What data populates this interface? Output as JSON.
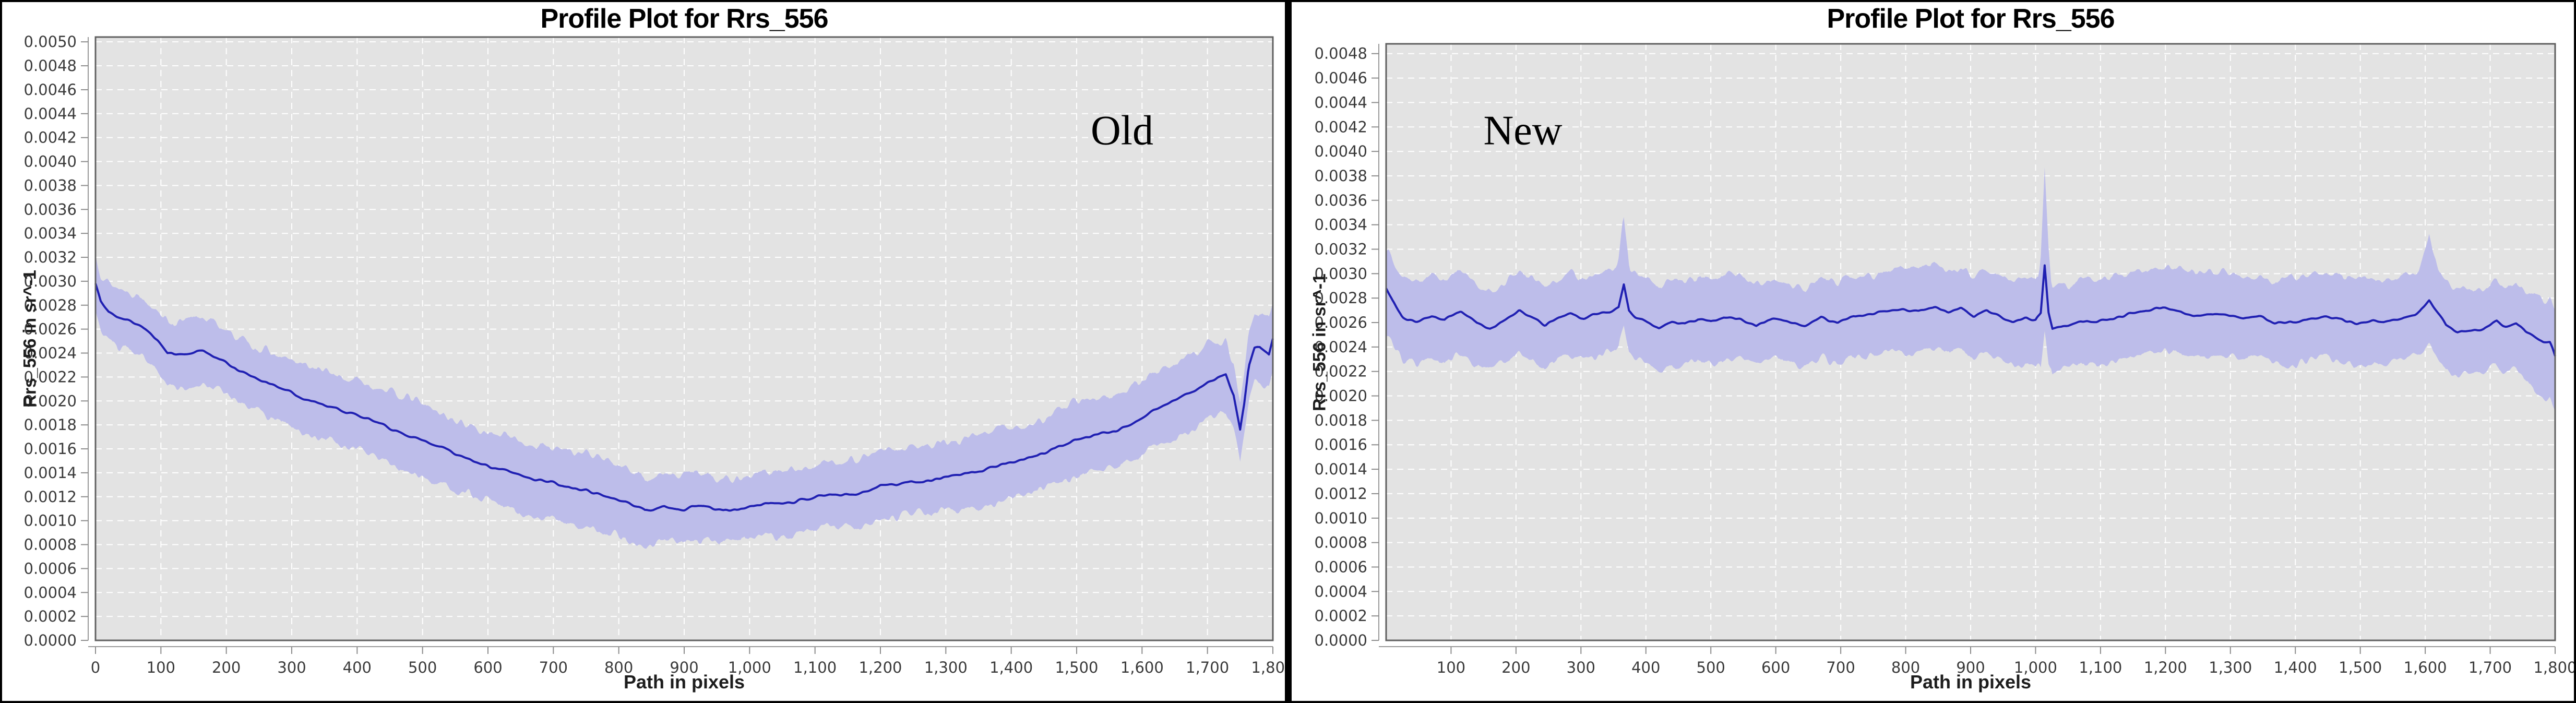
{
  "page": {
    "background": "#ffffff",
    "frame_border_color": "#000000",
    "divider_color": "#000000"
  },
  "chart_data": [
    {
      "type": "line",
      "title": "Profile Plot for Rrs_556",
      "annotation": "Old",
      "xlabel": "Path in pixels",
      "ylabel": "Rrs_556 in sr^-1",
      "xlim": [
        0,
        1800
      ],
      "ylim": [
        0,
        0.00504
      ],
      "x_tick_start": 0,
      "x_tick_step": 100,
      "x_tick_end": 1800,
      "y_tick_start": 0,
      "y_tick_step": 0.0002,
      "y_tick_end": 0.005,
      "grid": true,
      "colors": {
        "line": "#2020b2",
        "band": "#bdbdea",
        "plot_bg": "#e3e3e3",
        "grid": "#ffffff",
        "plot_border": "#5f5f5f",
        "axis": "#9a9a9a",
        "tick_text": "#3a3a3a"
      },
      "line_points": [
        [
          0,
          0.003
        ],
        [
          8,
          0.00285
        ],
        [
          20,
          0.00276
        ],
        [
          45,
          0.00268
        ],
        [
          70,
          0.00262
        ],
        [
          95,
          0.00252
        ],
        [
          110,
          0.00242
        ],
        [
          135,
          0.0024
        ],
        [
          165,
          0.00241
        ],
        [
          185,
          0.00235
        ],
        [
          210,
          0.00228
        ],
        [
          240,
          0.0022
        ],
        [
          270,
          0.00214
        ],
        [
          300,
          0.00206
        ],
        [
          330,
          0.00199
        ],
        [
          360,
          0.00194
        ],
        [
          390,
          0.00188
        ],
        [
          420,
          0.00182
        ],
        [
          450,
          0.00177
        ],
        [
          480,
          0.00171
        ],
        [
          510,
          0.00165
        ],
        [
          540,
          0.00159
        ],
        [
          570,
          0.00153
        ],
        [
          600,
          0.00148
        ],
        [
          630,
          0.00144
        ],
        [
          660,
          0.00139
        ],
        [
          690,
          0.00135
        ],
        [
          720,
          0.00131
        ],
        [
          750,
          0.00127
        ],
        [
          780,
          0.0012
        ],
        [
          810,
          0.00116
        ],
        [
          840,
          0.0011
        ],
        [
          870,
          0.00113
        ],
        [
          900,
          0.00111
        ],
        [
          930,
          0.00113
        ],
        [
          960,
          0.0011
        ],
        [
          990,
          0.00112
        ],
        [
          1020,
          0.00115
        ],
        [
          1050,
          0.00117
        ],
        [
          1080,
          0.00119
        ],
        [
          1110,
          0.00122
        ],
        [
          1140,
          0.00123
        ],
        [
          1170,
          0.00125
        ],
        [
          1200,
          0.00129
        ],
        [
          1230,
          0.00131
        ],
        [
          1260,
          0.00133
        ],
        [
          1290,
          0.00136
        ],
        [
          1320,
          0.0014
        ],
        [
          1350,
          0.00143
        ],
        [
          1380,
          0.00147
        ],
        [
          1410,
          0.00152
        ],
        [
          1440,
          0.00157
        ],
        [
          1470,
          0.00162
        ],
        [
          1500,
          0.00167
        ],
        [
          1530,
          0.00173
        ],
        [
          1560,
          0.00178
        ],
        [
          1590,
          0.00185
        ],
        [
          1620,
          0.00192
        ],
        [
          1650,
          0.00199
        ],
        [
          1680,
          0.00207
        ],
        [
          1700,
          0.00214
        ],
        [
          1715,
          0.00219
        ],
        [
          1728,
          0.00221
        ],
        [
          1740,
          0.00205
        ],
        [
          1750,
          0.00175
        ],
        [
          1756,
          0.00196
        ],
        [
          1763,
          0.00228
        ],
        [
          1772,
          0.00242
        ],
        [
          1780,
          0.00243
        ],
        [
          1788,
          0.0024
        ],
        [
          1794,
          0.00238
        ],
        [
          1800,
          0.00253
        ]
      ],
      "band_upper_halfwidth": [
        [
          0,
          0.00024
        ],
        [
          100,
          0.00027
        ],
        [
          300,
          0.00028
        ],
        [
          600,
          0.0003
        ],
        [
          900,
          0.00028
        ],
        [
          1200,
          0.00028
        ],
        [
          1500,
          0.0003
        ],
        [
          1700,
          0.0003
        ],
        [
          1750,
          0.00026
        ],
        [
          1790,
          0.0003
        ],
        [
          1800,
          0.00032
        ]
      ],
      "band_lower_halfwidth": [
        [
          0,
          0.00024
        ],
        [
          100,
          0.00027
        ],
        [
          300,
          0.00028
        ],
        [
          600,
          0.0003
        ],
        [
          900,
          0.00028
        ],
        [
          1200,
          0.00028
        ],
        [
          1500,
          0.0003
        ],
        [
          1700,
          0.0003
        ],
        [
          1750,
          0.00026
        ],
        [
          1800,
          0.00028
        ]
      ],
      "noise": {
        "seed": 11,
        "line_amp": 2.2e-05,
        "wander_amp": 4.5e-05,
        "band_amp": 6e-05,
        "step": 2
      }
    },
    {
      "type": "line",
      "title": "Profile Plot for Rrs_556",
      "annotation": "New",
      "xlabel": "Path in pixels",
      "ylabel": "Rrs_556 in sr^-1",
      "xlim": [
        0,
        1800
      ],
      "ylim": [
        0,
        0.00488
      ],
      "x_tick_start": 100,
      "x_tick_step": 100,
      "x_tick_end": 1800,
      "y_tick_start": 0,
      "y_tick_step": 0.0002,
      "y_tick_end": 0.0048,
      "grid": true,
      "colors": {
        "line": "#2020b2",
        "band": "#bdbdea",
        "plot_bg": "#e3e3e3",
        "grid": "#ffffff",
        "plot_border": "#5f5f5f",
        "axis": "#9a9a9a",
        "tick_text": "#3a3a3a"
      },
      "line_points": [
        [
          0,
          0.00288
        ],
        [
          10,
          0.00278
        ],
        [
          25,
          0.00265
        ],
        [
          45,
          0.00262
        ],
        [
          70,
          0.00264
        ],
        [
          90,
          0.0026
        ],
        [
          115,
          0.00267
        ],
        [
          140,
          0.00259
        ],
        [
          160,
          0.00256
        ],
        [
          185,
          0.00262
        ],
        [
          205,
          0.0027
        ],
        [
          225,
          0.00264
        ],
        [
          245,
          0.00259
        ],
        [
          265,
          0.00266
        ],
        [
          285,
          0.00268
        ],
        [
          305,
          0.00262
        ],
        [
          325,
          0.00266
        ],
        [
          345,
          0.00268
        ],
        [
          358,
          0.00272
        ],
        [
          366,
          0.00291
        ],
        [
          374,
          0.0027
        ],
        [
          385,
          0.00265
        ],
        [
          400,
          0.00262
        ],
        [
          420,
          0.00256
        ],
        [
          440,
          0.0026
        ],
        [
          460,
          0.00258
        ],
        [
          480,
          0.00262
        ],
        [
          500,
          0.0026
        ],
        [
          520,
          0.00264
        ],
        [
          545,
          0.00262
        ],
        [
          570,
          0.00258
        ],
        [
          595,
          0.00264
        ],
        [
          620,
          0.0026
        ],
        [
          645,
          0.00256
        ],
        [
          670,
          0.00262
        ],
        [
          695,
          0.00258
        ],
        [
          720,
          0.00264
        ],
        [
          745,
          0.00266
        ],
        [
          770,
          0.00268
        ],
        [
          795,
          0.0027
        ],
        [
          820,
          0.00268
        ],
        [
          845,
          0.00272
        ],
        [
          865,
          0.00269
        ],
        [
          885,
          0.00274
        ],
        [
          905,
          0.00265
        ],
        [
          925,
          0.00271
        ],
        [
          945,
          0.00266
        ],
        [
          965,
          0.00262
        ],
        [
          985,
          0.00265
        ],
        [
          1000,
          0.00264
        ],
        [
          1008,
          0.0027
        ],
        [
          1014,
          0.00308
        ],
        [
          1020,
          0.0027
        ],
        [
          1026,
          0.00256
        ],
        [
          1045,
          0.00259
        ],
        [
          1070,
          0.00262
        ],
        [
          1095,
          0.00261
        ],
        [
          1120,
          0.00264
        ],
        [
          1145,
          0.00268
        ],
        [
          1170,
          0.00271
        ],
        [
          1195,
          0.00272
        ],
        [
          1220,
          0.00268
        ],
        [
          1245,
          0.00265
        ],
        [
          1270,
          0.00267
        ],
        [
          1295,
          0.00265
        ],
        [
          1320,
          0.00263
        ],
        [
          1345,
          0.00265
        ],
        [
          1370,
          0.00261
        ],
        [
          1395,
          0.0026
        ],
        [
          1420,
          0.00262
        ],
        [
          1445,
          0.00263
        ],
        [
          1470,
          0.00261
        ],
        [
          1495,
          0.00258
        ],
        [
          1520,
          0.00261
        ],
        [
          1545,
          0.00262
        ],
        [
          1570,
          0.00265
        ],
        [
          1592,
          0.0027
        ],
        [
          1606,
          0.00277
        ],
        [
          1616,
          0.0027
        ],
        [
          1632,
          0.00258
        ],
        [
          1650,
          0.00253
        ],
        [
          1670,
          0.00255
        ],
        [
          1690,
          0.00257
        ],
        [
          1710,
          0.00262
        ],
        [
          1725,
          0.00257
        ],
        [
          1740,
          0.00259
        ],
        [
          1755,
          0.00251
        ],
        [
          1770,
          0.00247
        ],
        [
          1782,
          0.00243
        ],
        [
          1792,
          0.00241
        ],
        [
          1800,
          0.00231
        ]
      ],
      "band_upper_halfwidth": [
        [
          0,
          0.00032
        ],
        [
          300,
          0.00033
        ],
        [
          355,
          0.00035
        ],
        [
          365,
          0.00062
        ],
        [
          375,
          0.00035
        ],
        [
          600,
          0.00032
        ],
        [
          950,
          0.00033
        ],
        [
          1005,
          0.00035
        ],
        [
          1014,
          0.00082
        ],
        [
          1024,
          0.00035
        ],
        [
          1300,
          0.00034
        ],
        [
          1590,
          0.00035
        ],
        [
          1606,
          0.00055
        ],
        [
          1620,
          0.00035
        ],
        [
          1700,
          0.00033
        ],
        [
          1800,
          0.00034
        ]
      ],
      "band_lower_halfwidth": [
        [
          0,
          0.00034
        ],
        [
          300,
          0.00034
        ],
        [
          600,
          0.00033
        ],
        [
          900,
          0.00035
        ],
        [
          1005,
          0.00036
        ],
        [
          1014,
          0.00052
        ],
        [
          1024,
          0.00036
        ],
        [
          1300,
          0.00034
        ],
        [
          1600,
          0.00036
        ],
        [
          1750,
          0.00038
        ],
        [
          1790,
          0.00044
        ],
        [
          1800,
          0.00042
        ]
      ],
      "noise": {
        "seed": 77,
        "line_amp": 2e-05,
        "wander_amp": 4e-05,
        "band_amp": 5.5e-05,
        "step": 2
      }
    }
  ]
}
